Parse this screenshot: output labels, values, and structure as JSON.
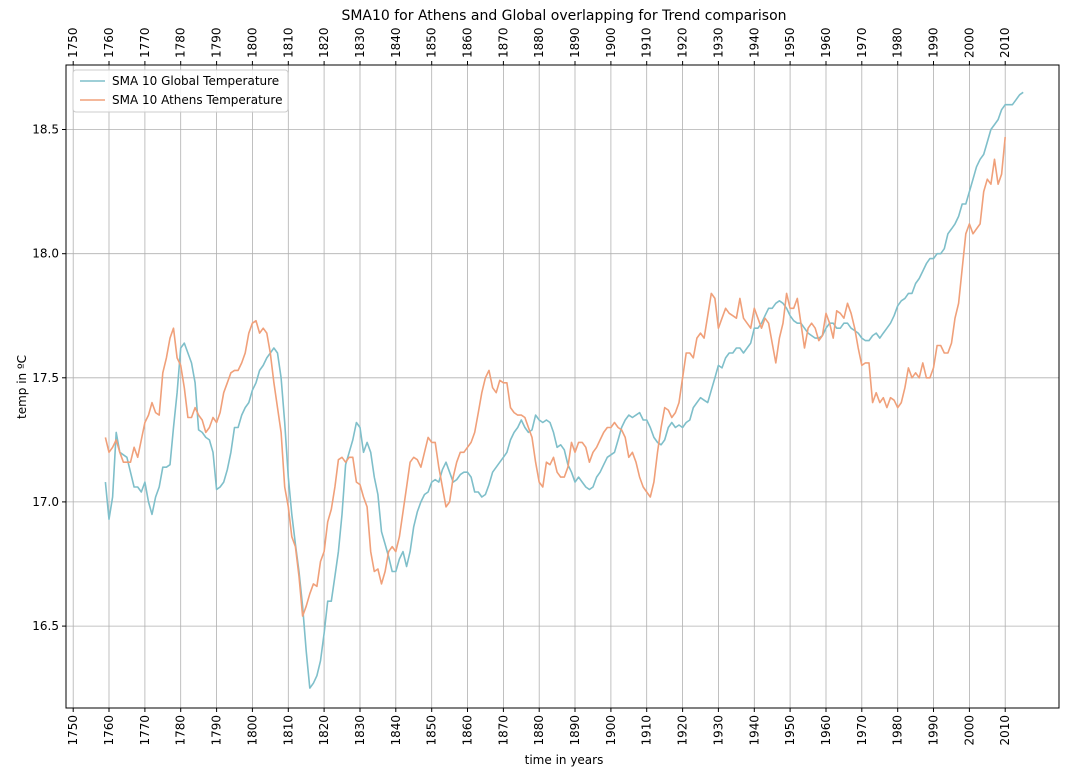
{
  "chart_data": {
    "type": "line",
    "title": "SMA10 for Athens and Global overlapping for Trend comparison",
    "xlabel": "time in years",
    "ylabel": "temp in ºC",
    "xlim": [
      1748,
      2025
    ],
    "ylim": [
      16.17,
      18.76
    ],
    "xticks": [
      1750,
      1760,
      1770,
      1780,
      1790,
      1800,
      1810,
      1820,
      1830,
      1840,
      1850,
      1860,
      1870,
      1880,
      1890,
      1900,
      1910,
      1920,
      1930,
      1940,
      1950,
      1960,
      1970,
      1980,
      1990,
      2000,
      2010
    ],
    "xtick_labels": [
      "1750",
      "1760",
      "1770",
      "1780",
      "1790",
      "1800",
      "1810",
      "1820",
      "1830",
      "1840",
      "1850",
      "1860",
      "1870",
      "1880",
      "1890",
      "1900",
      "1910",
      "1920",
      "1930",
      "1940",
      "1950",
      "1960",
      "1970",
      "1980",
      "1990",
      "2000",
      "2010"
    ],
    "yticks": [
      16.5,
      17.0,
      17.5,
      18.0,
      18.5
    ],
    "ytick_labels": [
      "16.5",
      "17.0",
      "17.5",
      "18.0",
      "18.5"
    ],
    "grid": true,
    "legend_position": "top-left",
    "x_ticks_top_and_bottom": true,
    "series": [
      {
        "name": "SMA 10 Global Temperature",
        "color": "#7fbfca",
        "x": [
          1759,
          1760,
          1761,
          1762,
          1763,
          1765,
          1766,
          1767,
          1768,
          1769,
          1770,
          1771,
          1772,
          1773,
          1774,
          1775,
          1776,
          1777,
          1778,
          1779,
          1780,
          1781,
          1782,
          1783,
          1784,
          1785,
          1786,
          1787,
          1788,
          1789,
          1790,
          1791,
          1792,
          1793,
          1794,
          1795,
          1796,
          1797,
          1798,
          1799,
          1800,
          1801,
          1802,
          1803,
          1804,
          1805,
          1806,
          1807,
          1808,
          1809,
          1810,
          1811,
          1812,
          1813,
          1814,
          1815,
          1816,
          1817,
          1818,
          1819,
          1820,
          1821,
          1822,
          1823,
          1824,
          1825,
          1826,
          1827,
          1828,
          1829,
          1830,
          1831,
          1832,
          1833,
          1834,
          1835,
          1836,
          1837,
          1838,
          1839,
          1840,
          1841,
          1842,
          1843,
          1844,
          1845,
          1846,
          1847,
          1848,
          1849,
          1850,
          1851,
          1852,
          1853,
          1854,
          1855,
          1856,
          1857,
          1858,
          1859,
          1860,
          1861,
          1862,
          1863,
          1864,
          1865,
          1866,
          1867,
          1868,
          1869,
          1870,
          1871,
          1872,
          1873,
          1874,
          1875,
          1876,
          1877,
          1878,
          1879,
          1880,
          1881,
          1882,
          1883,
          1884,
          1885,
          1886,
          1887,
          1888,
          1889,
          1890,
          1891,
          1892,
          1893,
          1894,
          1895,
          1896,
          1897,
          1898,
          1899,
          1900,
          1901,
          1902,
          1903,
          1904,
          1905,
          1906,
          1907,
          1908,
          1909,
          1910,
          1911,
          1912,
          1913,
          1914,
          1915,
          1916,
          1917,
          1918,
          1919,
          1920,
          1921,
          1922,
          1923,
          1924,
          1925,
          1926,
          1927,
          1928,
          1929,
          1930,
          1931,
          1932,
          1933,
          1934,
          1935,
          1936,
          1937,
          1938,
          1939,
          1940,
          1941,
          1942,
          1943,
          1944,
          1945,
          1946,
          1947,
          1948,
          1949,
          1950,
          1951,
          1952,
          1953,
          1954,
          1955,
          1956,
          1957,
          1958,
          1959,
          1960,
          1961,
          1962,
          1963,
          1964,
          1965,
          1966,
          1967,
          1968,
          1969,
          1970,
          1971,
          1972,
          1973,
          1974,
          1975,
          1976,
          1977,
          1978,
          1979,
          1980,
          1981,
          1982,
          1983,
          1984,
          1985,
          1986,
          1987,
          1988,
          1989,
          1990,
          1991,
          1992,
          1993,
          1994,
          1995,
          1996,
          1997,
          1998,
          1999,
          2000,
          2001,
          2002,
          2003,
          2004,
          2005,
          2006,
          2007,
          2008,
          2009,
          2010,
          2011,
          2012,
          2013,
          2014,
          2015
        ],
        "values": [
          17.08,
          16.93,
          17.02,
          17.28,
          17.2,
          17.18,
          17.12,
          17.06,
          17.06,
          17.04,
          17.08,
          17.0,
          16.95,
          17.02,
          17.06,
          17.14,
          17.14,
          17.15,
          17.3,
          17.44,
          17.62,
          17.64,
          17.6,
          17.56,
          17.48,
          17.29,
          17.28,
          17.26,
          17.25,
          17.2,
          17.05,
          17.06,
          17.08,
          17.13,
          17.2,
          17.3,
          17.3,
          17.35,
          17.38,
          17.4,
          17.45,
          17.48,
          17.53,
          17.55,
          17.58,
          17.6,
          17.62,
          17.6,
          17.5,
          17.32,
          17.1,
          16.95,
          16.83,
          16.72,
          16.58,
          16.4,
          16.25,
          16.27,
          16.3,
          16.36,
          16.47,
          16.6,
          16.6,
          16.7,
          16.8,
          16.95,
          17.15,
          17.2,
          17.25,
          17.32,
          17.3,
          17.2,
          17.24,
          17.2,
          17.1,
          17.03,
          16.88,
          16.83,
          16.78,
          16.72,
          16.72,
          16.77,
          16.8,
          16.74,
          16.8,
          16.9,
          16.96,
          17.0,
          17.03,
          17.04,
          17.08,
          17.09,
          17.08,
          17.13,
          17.16,
          17.12,
          17.08,
          17.09,
          17.11,
          17.12,
          17.12,
          17.1,
          17.04,
          17.04,
          17.02,
          17.03,
          17.07,
          17.12,
          17.14,
          17.16,
          17.18,
          17.2,
          17.25,
          17.28,
          17.3,
          17.33,
          17.3,
          17.28,
          17.29,
          17.35,
          17.33,
          17.32,
          17.33,
          17.32,
          17.28,
          17.22,
          17.23,
          17.21,
          17.15,
          17.12,
          17.08,
          17.1,
          17.08,
          17.06,
          17.05,
          17.06,
          17.1,
          17.12,
          17.15,
          17.18,
          17.19,
          17.2,
          17.25,
          17.3,
          17.33,
          17.35,
          17.34,
          17.35,
          17.36,
          17.33,
          17.33,
          17.3,
          17.26,
          17.24,
          17.23,
          17.25,
          17.3,
          17.32,
          17.3,
          17.31,
          17.3,
          17.32,
          17.33,
          17.38,
          17.4,
          17.42,
          17.41,
          17.4,
          17.45,
          17.5,
          17.55,
          17.54,
          17.58,
          17.6,
          17.6,
          17.62,
          17.62,
          17.6,
          17.62,
          17.64,
          17.7,
          17.7,
          17.72,
          17.75,
          17.78,
          17.78,
          17.8,
          17.81,
          17.8,
          17.78,
          17.75,
          17.73,
          17.72,
          17.72,
          17.7,
          17.68,
          17.67,
          17.66,
          17.66,
          17.67,
          17.7,
          17.72,
          17.72,
          17.7,
          17.7,
          17.72,
          17.72,
          17.7,
          17.69,
          17.68,
          17.66,
          17.65,
          17.65,
          17.67,
          17.68,
          17.66,
          17.68,
          17.7,
          17.72,
          17.75,
          17.79,
          17.81,
          17.82,
          17.84,
          17.84,
          17.88,
          17.9,
          17.93,
          17.96,
          17.98,
          17.98,
          18.0,
          18.0,
          18.02,
          18.08,
          18.1,
          18.12,
          18.15,
          18.2,
          18.2,
          18.25,
          18.3,
          18.35,
          18.38,
          18.4,
          18.45,
          18.5,
          18.52,
          18.54,
          18.58,
          18.6,
          18.6,
          18.6,
          18.62,
          18.64,
          18.65
        ]
      },
      {
        "name": "SMA 10 Athens Temperature",
        "color": "#f0a07a",
        "x": [
          1759,
          1760,
          1761,
          1762,
          1763,
          1764,
          1765,
          1766,
          1767,
          1768,
          1769,
          1770,
          1771,
          1772,
          1773,
          1774,
          1775,
          1776,
          1777,
          1778,
          1779,
          1780,
          1781,
          1782,
          1783,
          1784,
          1785,
          1786,
          1787,
          1788,
          1789,
          1790,
          1791,
          1792,
          1793,
          1794,
          1795,
          1796,
          1797,
          1798,
          1799,
          1800,
          1801,
          1802,
          1803,
          1804,
          1805,
          1806,
          1807,
          1808,
          1809,
          1810,
          1811,
          1812,
          1813,
          1814,
          1815,
          1816,
          1817,
          1818,
          1819,
          1820,
          1821,
          1822,
          1823,
          1824,
          1825,
          1826,
          1827,
          1828,
          1829,
          1830,
          1831,
          1832,
          1833,
          1834,
          1835,
          1836,
          1837,
          1838,
          1839,
          1840,
          1841,
          1842,
          1843,
          1844,
          1845,
          1846,
          1847,
          1848,
          1849,
          1850,
          1851,
          1852,
          1853,
          1854,
          1855,
          1856,
          1857,
          1858,
          1859,
          1860,
          1861,
          1862,
          1863,
          1864,
          1865,
          1866,
          1867,
          1868,
          1869,
          1870,
          1871,
          1872,
          1873,
          1874,
          1875,
          1876,
          1877,
          1878,
          1879,
          1880,
          1881,
          1882,
          1883,
          1884,
          1885,
          1886,
          1887,
          1888,
          1889,
          1890,
          1891,
          1892,
          1893,
          1894,
          1895,
          1896,
          1897,
          1898,
          1899,
          1900,
          1901,
          1902,
          1903,
          1904,
          1905,
          1906,
          1907,
          1908,
          1909,
          1910,
          1911,
          1912,
          1913,
          1914,
          1915,
          1916,
          1917,
          1918,
          1919,
          1920,
          1921,
          1922,
          1923,
          1924,
          1925,
          1926,
          1927,
          1928,
          1929,
          1930,
          1931,
          1932,
          1933,
          1934,
          1935,
          1936,
          1937,
          1938,
          1939,
          1940,
          1941,
          1942,
          1943,
          1944,
          1945,
          1946,
          1947,
          1948,
          1949,
          1950,
          1951,
          1952,
          1953,
          1954,
          1955,
          1956,
          1957,
          1958,
          1959,
          1960,
          1961,
          1962,
          1963,
          1964,
          1965,
          1966,
          1967,
          1968,
          1969,
          1970,
          1971,
          1972,
          1973,
          1974,
          1975,
          1976,
          1977,
          1978,
          1979,
          1980,
          1981,
          1982,
          1983,
          1984,
          1985,
          1986,
          1987,
          1988,
          1989,
          1990,
          1991,
          1992,
          1993,
          1994,
          1995,
          1996,
          1997,
          1998,
          1999,
          2000,
          2001,
          2002,
          2003,
          2004,
          2005,
          2006,
          2007,
          2008,
          2009,
          2010
        ],
        "values": [
          17.26,
          17.2,
          17.22,
          17.25,
          17.2,
          17.16,
          17.16,
          17.16,
          17.22,
          17.18,
          17.25,
          17.32,
          17.35,
          17.4,
          17.36,
          17.35,
          17.52,
          17.58,
          17.66,
          17.7,
          17.58,
          17.55,
          17.46,
          17.34,
          17.34,
          17.38,
          17.35,
          17.33,
          17.28,
          17.3,
          17.34,
          17.32,
          17.36,
          17.44,
          17.48,
          17.52,
          17.53,
          17.53,
          17.56,
          17.6,
          17.68,
          17.72,
          17.73,
          17.68,
          17.7,
          17.68,
          17.6,
          17.48,
          17.38,
          17.28,
          17.06,
          16.98,
          16.86,
          16.82,
          16.7,
          16.54,
          16.58,
          16.63,
          16.67,
          16.66,
          16.76,
          16.8,
          16.92,
          16.97,
          17.06,
          17.17,
          17.18,
          17.16,
          17.18,
          17.18,
          17.08,
          17.07,
          17.02,
          16.98,
          16.8,
          16.72,
          16.73,
          16.67,
          16.72,
          16.8,
          16.82,
          16.8,
          16.86,
          16.96,
          17.06,
          17.16,
          17.18,
          17.17,
          17.14,
          17.2,
          17.26,
          17.24,
          17.24,
          17.14,
          17.06,
          16.98,
          17.0,
          17.1,
          17.16,
          17.2,
          17.2,
          17.22,
          17.24,
          17.28,
          17.36,
          17.44,
          17.5,
          17.53,
          17.46,
          17.44,
          17.49,
          17.48,
          17.48,
          17.38,
          17.36,
          17.35,
          17.35,
          17.34,
          17.3,
          17.26,
          17.16,
          17.08,
          17.06,
          17.16,
          17.15,
          17.18,
          17.12,
          17.1,
          17.1,
          17.14,
          17.24,
          17.2,
          17.24,
          17.24,
          17.22,
          17.16,
          17.2,
          17.22,
          17.25,
          17.28,
          17.3,
          17.3,
          17.32,
          17.3,
          17.29,
          17.26,
          17.18,
          17.2,
          17.16,
          17.1,
          17.06,
          17.04,
          17.02,
          17.08,
          17.2,
          17.3,
          17.38,
          17.37,
          17.34,
          17.36,
          17.4,
          17.5,
          17.6,
          17.6,
          17.58,
          17.66,
          17.68,
          17.66,
          17.75,
          17.84,
          17.82,
          17.7,
          17.74,
          17.78,
          17.76,
          17.75,
          17.74,
          17.82,
          17.74,
          17.72,
          17.7,
          17.78,
          17.74,
          17.7,
          17.74,
          17.72,
          17.64,
          17.56,
          17.66,
          17.72,
          17.84,
          17.78,
          17.78,
          17.82,
          17.72,
          17.62,
          17.7,
          17.72,
          17.7,
          17.65,
          17.67,
          17.76,
          17.72,
          17.66,
          17.77,
          17.76,
          17.74,
          17.8,
          17.76,
          17.7,
          17.62,
          17.55,
          17.56,
          17.56,
          17.4,
          17.44,
          17.4,
          17.42,
          17.38,
          17.42,
          17.41,
          17.38,
          17.4,
          17.46,
          17.54,
          17.5,
          17.52,
          17.5,
          17.56,
          17.5,
          17.5,
          17.54,
          17.63,
          17.63,
          17.6,
          17.6,
          17.64,
          17.74,
          17.8,
          17.94,
          18.08,
          18.12,
          18.08,
          18.1,
          18.12,
          18.25,
          18.3,
          18.28,
          18.38,
          18.28,
          18.32,
          18.47
        ]
      }
    ]
  }
}
